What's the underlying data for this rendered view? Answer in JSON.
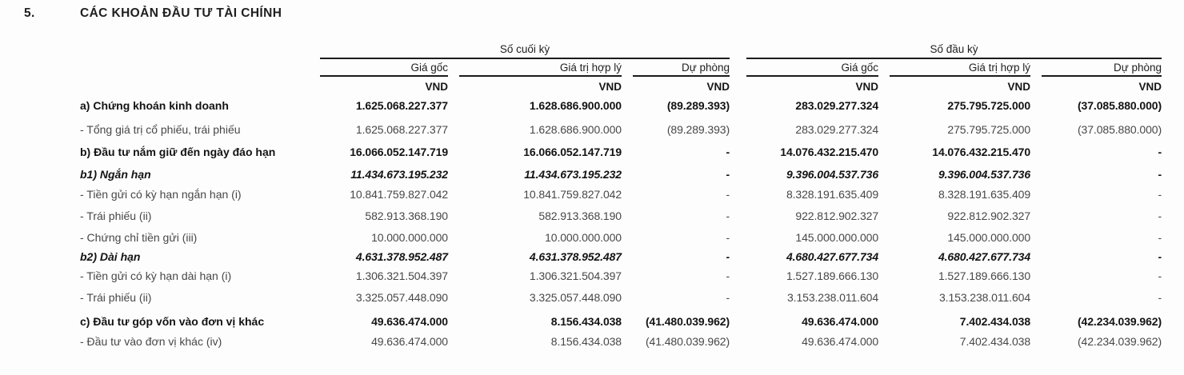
{
  "page": {
    "section_number": "5.",
    "section_title": "CÁC KHOẢN ĐẦU TƯ TÀI CHÍNH"
  },
  "table": {
    "unit": "VND",
    "period_groups": [
      {
        "label": "Số cuối kỳ",
        "columns": [
          "Giá gốc",
          "Giá trị hợp lý",
          "Dự phòng"
        ]
      },
      {
        "label": "Số đầu kỳ",
        "columns": [
          "Giá gốc",
          "Giá trị hợp lý",
          "Dự phòng"
        ]
      }
    ],
    "rows": [
      {
        "label": "a) Chứng khoán kinh doanh",
        "emphasis": "bold",
        "values": [
          "1.625.068.227.377",
          "1.628.686.900.000",
          "(89.289.393)",
          "283.029.277.324",
          "275.795.725.000",
          "(37.085.880.000)"
        ]
      },
      {
        "label": "- Tổng giá trị cổ phiếu, trái phiếu",
        "emphasis": "normal",
        "values": [
          "1.625.068.227.377",
          "1.628.686.900.000",
          "(89.289.393)",
          "283.029.277.324",
          "275.795.725.000",
          "(37.085.880.000)"
        ]
      },
      {
        "label": "b) Đầu tư nắm giữ đến ngày đáo hạn",
        "emphasis": "bold",
        "values": [
          "16.066.052.147.719",
          "16.066.052.147.719",
          "-",
          "14.076.432.215.470",
          "14.076.432.215.470",
          "-"
        ]
      },
      {
        "label": "b1) Ngắn hạn",
        "emphasis": "bold-italic",
        "values": [
          "11.434.673.195.232",
          "11.434.673.195.232",
          "-",
          "9.396.004.537.736",
          "9.396.004.537.736",
          "-"
        ]
      },
      {
        "label": "- Tiền gửi có kỳ hạn ngắn hạn (i)",
        "emphasis": "normal",
        "values": [
          "10.841.759.827.042",
          "10.841.759.827.042",
          "-",
          "8.328.191.635.409",
          "8.328.191.635.409",
          "-"
        ]
      },
      {
        "label": "- Trái phiếu (ii)",
        "emphasis": "normal",
        "values": [
          "582.913.368.190",
          "582.913.368.190",
          "-",
          "922.812.902.327",
          "922.812.902.327",
          "-"
        ]
      },
      {
        "label": "- Chứng chỉ tiền gửi (iii)",
        "emphasis": "normal",
        "values": [
          "10.000.000.000",
          "10.000.000.000",
          "-",
          "145.000.000.000",
          "145.000.000.000",
          "-"
        ]
      },
      {
        "label": "b2) Dài hạn",
        "emphasis": "bold-italic",
        "values": [
          "4.631.378.952.487",
          "4.631.378.952.487",
          "-",
          "4.680.427.677.734",
          "4.680.427.677.734",
          "-"
        ]
      },
      {
        "label": "- Tiền gửi có kỳ hạn dài hạn (i)",
        "emphasis": "normal",
        "values": [
          "1.306.321.504.397",
          "1.306.321.504.397",
          "-",
          "1.527.189.666.130",
          "1.527.189.666.130",
          "-"
        ]
      },
      {
        "label": "- Trái phiếu (ii)",
        "emphasis": "normal",
        "values": [
          "3.325.057.448.090",
          "3.325.057.448.090",
          "-",
          "3.153.238.011.604",
          "3.153.238.011.604",
          "-"
        ]
      },
      {
        "label": "c) Đầu tư góp vốn vào đơn vị khác",
        "emphasis": "bold",
        "values": [
          "49.636.474.000",
          "8.156.434.038",
          "(41.480.039.962)",
          "49.636.474.000",
          "7.402.434.038",
          "(42.234.039.962)"
        ]
      },
      {
        "label": "- Đầu tư vào đơn vị khác (iv)",
        "emphasis": "normal",
        "values": [
          "49.636.474.000",
          "8.156.434.038",
          "(41.480.039.962)",
          "49.636.474.000",
          "7.402.434.038",
          "(42.234.039.962)"
        ]
      }
    ]
  },
  "colors": {
    "background": "#fdfdfd",
    "text_primary": "#131313",
    "text_secondary": "#474747",
    "rule": "#1b1b1b"
  }
}
